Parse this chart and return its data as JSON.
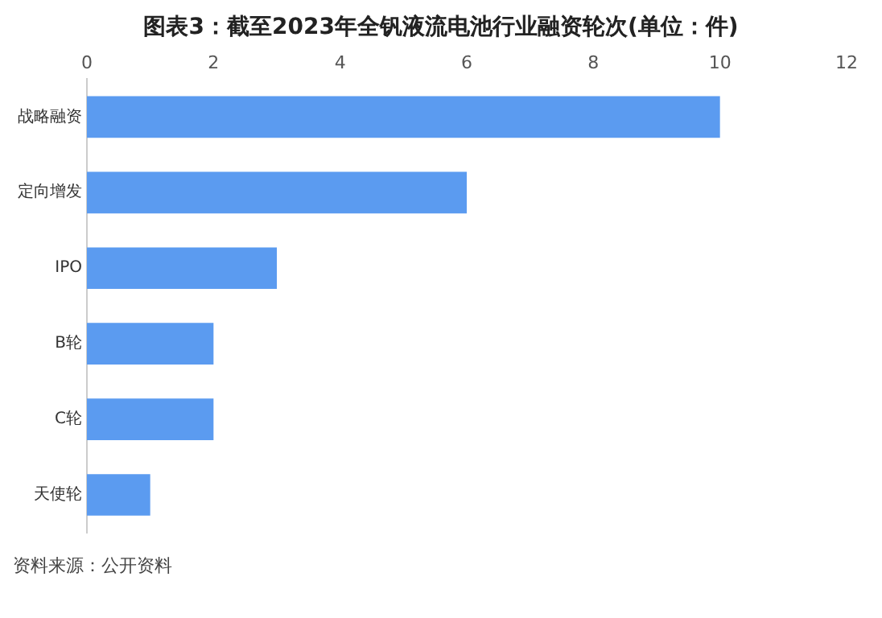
{
  "chart_data": {
    "type": "bar",
    "orientation": "horizontal",
    "title": "图表3：截至2023年全钒液流电池行业融资轮次(单位：件)",
    "categories": [
      "战略融资",
      "定向增发",
      "IPO",
      "B轮",
      "C轮",
      "天使轮"
    ],
    "values": [
      10,
      6,
      3,
      2,
      2,
      1
    ],
    "color": "#5b9bf0",
    "xlim": [
      0,
      12
    ],
    "xticks": [
      0,
      2,
      4,
      6,
      8,
      10,
      12
    ],
    "grid": false,
    "legend": false,
    "annotations": [
      "资料来源：公开资料"
    ]
  }
}
